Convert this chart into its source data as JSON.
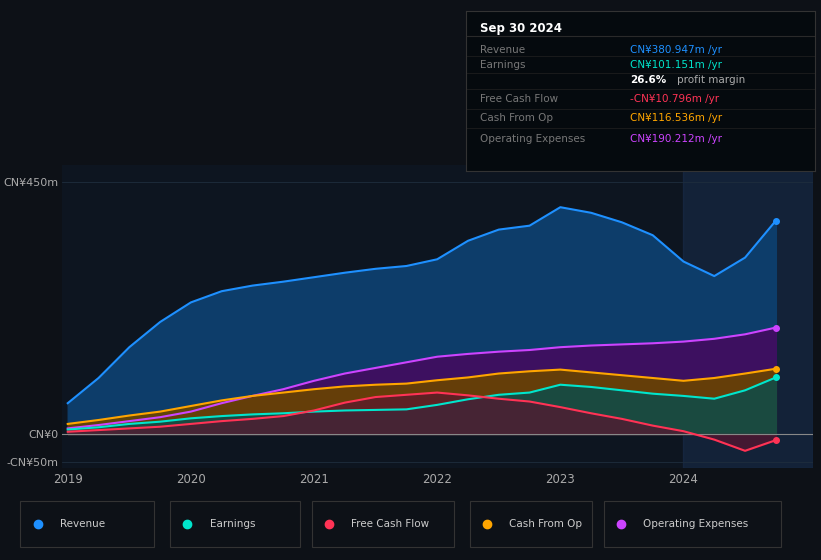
{
  "bg_color": "#0d1117",
  "plot_bg_color": "#0d1520",
  "grid_color": "#1e2d3d",
  "title_box": {
    "date": "Sep 30 2024",
    "rows": [
      {
        "label": "Revenue",
        "value": "CN¥380.947m /yr",
        "value_color": "#1e90ff"
      },
      {
        "label": "Earnings",
        "value": "CN¥101.151m /yr",
        "value_color": "#00e5cc"
      },
      {
        "label": "",
        "value": "26.6% profit margin",
        "value_color": "#ffffff"
      },
      {
        "label": "Free Cash Flow",
        "value": "-CN¥10.796m /yr",
        "value_color": "#ff3355"
      },
      {
        "label": "Cash From Op",
        "value": "CN¥116.536m /yr",
        "value_color": "#ffa500"
      },
      {
        "label": "Operating Expenses",
        "value": "CN¥190.212m /yr",
        "value_color": "#cc44ff"
      }
    ]
  },
  "x_years": [
    2019.0,
    2019.25,
    2019.5,
    2019.75,
    2020.0,
    2020.25,
    2020.5,
    2020.75,
    2021.0,
    2021.25,
    2021.5,
    2021.75,
    2022.0,
    2022.25,
    2022.5,
    2022.75,
    2023.0,
    2023.25,
    2023.5,
    2023.75,
    2024.0,
    2024.25,
    2024.5,
    2024.75
  ],
  "revenue": [
    55,
    100,
    155,
    200,
    235,
    255,
    265,
    272,
    280,
    288,
    295,
    300,
    312,
    345,
    365,
    372,
    405,
    395,
    378,
    355,
    308,
    282,
    315,
    381
  ],
  "earnings": [
    8,
    12,
    18,
    22,
    28,
    32,
    35,
    37,
    40,
    42,
    43,
    44,
    52,
    62,
    70,
    74,
    88,
    84,
    78,
    72,
    68,
    63,
    78,
    101
  ],
  "free_cash_flow": [
    4,
    7,
    10,
    13,
    18,
    23,
    27,
    32,
    42,
    56,
    66,
    70,
    74,
    69,
    63,
    58,
    48,
    37,
    27,
    15,
    5,
    -10,
    -30,
    -11
  ],
  "cash_from_op": [
    18,
    25,
    33,
    40,
    50,
    60,
    68,
    74,
    80,
    85,
    88,
    90,
    96,
    101,
    108,
    112,
    115,
    110,
    105,
    100,
    95,
    100,
    108,
    116.5
  ],
  "op_expenses": [
    10,
    16,
    23,
    30,
    40,
    55,
    68,
    80,
    95,
    108,
    118,
    128,
    138,
    143,
    147,
    150,
    155,
    158,
    160,
    162,
    165,
    170,
    178,
    190
  ],
  "revenue_color": "#1e90ff",
  "revenue_fill": "#0d3d6a",
  "earnings_color": "#00e5cc",
  "earnings_fill": "#1a4a40",
  "fcf_color": "#ff3355",
  "fcf_fill": "#5a1530",
  "cfo_color": "#ffa500",
  "cfo_fill": "#6a4400",
  "opex_color": "#cc44ff",
  "opex_fill": "#3d1060",
  "ylim": [
    -60,
    480
  ],
  "ytick_top_label": "CN¥450m",
  "ytick_zero_label": "CN¥0",
  "ytick_bottom_label": "-CN¥50m",
  "ytick_top": 450,
  "ytick_zero": 0,
  "ytick_bottom": -50,
  "xticks": [
    2019,
    2020,
    2021,
    2022,
    2023,
    2024
  ],
  "highlight_x_start": 2024.0,
  "highlight_color": "#1a3050",
  "legend_items": [
    {
      "label": "Revenue",
      "color": "#1e90ff"
    },
    {
      "label": "Earnings",
      "color": "#00e5cc"
    },
    {
      "label": "Free Cash Flow",
      "color": "#ff3355"
    },
    {
      "label": "Cash From Op",
      "color": "#ffa500"
    },
    {
      "label": "Operating Expenses",
      "color": "#cc44ff"
    }
  ]
}
